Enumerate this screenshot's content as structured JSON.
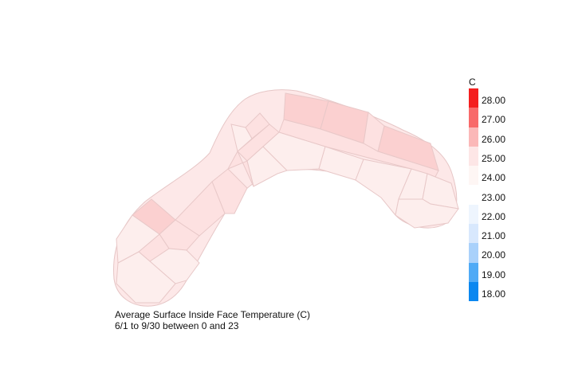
{
  "caption": {
    "line1": "Average Surface Inside Face Temperature (C)",
    "line2": "6/1 to 9/30 between 0 and 23"
  },
  "legend": {
    "unit": "C",
    "ticks": [
      "28.00",
      "27.00",
      "26.00",
      "25.00",
      "24.00",
      "23.00",
      "22.00",
      "21.00",
      "20.00",
      "19.00",
      "18.00"
    ],
    "bins": [
      {
        "range": "above 28",
        "color": "#f41e1e"
      },
      {
        "range": "27-28",
        "color": "#f86a6a"
      },
      {
        "range": "26-27",
        "color": "#fbb8b8"
      },
      {
        "range": "25-26",
        "color": "#fde6e6"
      },
      {
        "range": "24-25",
        "color": "#fef6f4"
      },
      {
        "range": "23-24",
        "color": "#ffffff"
      },
      {
        "range": "22-23",
        "color": "#eef5fe"
      },
      {
        "range": "21-22",
        "color": "#d8e8fd"
      },
      {
        "range": "20-21",
        "color": "#a9d1fb"
      },
      {
        "range": "19-20",
        "color": "#4faaf6"
      },
      {
        "range": "18-19",
        "color": "#0a87f0"
      }
    ]
  },
  "plan": {
    "outline_color": "#fbe6e6",
    "edge_color": "#e8c8c8",
    "zone_colors": {
      "warm": "#fbd0d0",
      "mild": "#fde1e1",
      "cool": "#fdeeed"
    }
  }
}
